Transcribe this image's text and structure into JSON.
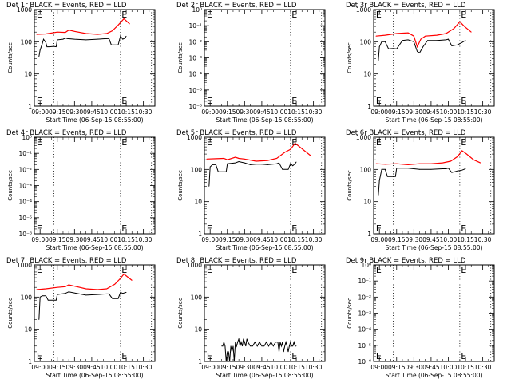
{
  "chart_data": [
    {
      "type": "line",
      "title": "Det 1r BLACK = Events, RED = LLD",
      "xlabel": "Start Time (06-Sep-15 08:55:00)",
      "ylabel": "Counts/sec",
      "yscale": "log",
      "ylim": [
        1,
        1000
      ],
      "ytick_labels": [
        "1",
        "10",
        "100",
        "1000"
      ],
      "xtick_labels": [
        "09:00",
        "09:15",
        "09:30",
        "09:45",
        "10:00",
        "10:15",
        "10:30"
      ],
      "vlines": [
        "09:12",
        "10:10",
        "10:37"
      ],
      "markers": [
        {
          "text": "E",
          "x": "08:57"
        },
        {
          "text": "E",
          "x": "10:11"
        }
      ],
      "series": [
        {
          "color": "#ff0000",
          "x": [
            "08:57",
            "09:05",
            "09:15",
            "09:22",
            "09:25",
            "09:30",
            "09:40",
            "09:50",
            "09:58",
            "10:03",
            "10:08",
            "10:13",
            "10:18"
          ],
          "values": [
            170,
            175,
            200,
            195,
            230,
            210,
            180,
            170,
            180,
            220,
            330,
            520,
            360
          ]
        },
        {
          "color": "#000000",
          "x": [
            "08:59",
            "09:00",
            "09:02",
            "09:03",
            "09:05",
            "09:06",
            "09:07",
            "09:08",
            "09:12",
            "09:14",
            "09:15",
            "09:20",
            "09:22",
            "09:24",
            "09:30",
            "09:40",
            "09:50",
            "09:58",
            "10:00",
            "10:02",
            "10:08",
            "10:10",
            "10:12",
            "10:14",
            "10:15"
          ],
          "values": [
            35,
            55,
            90,
            120,
            95,
            70,
            70,
            70,
            72,
            70,
            115,
            120,
            130,
            125,
            120,
            115,
            120,
            125,
            125,
            80,
            80,
            150,
            120,
            130,
            150
          ]
        }
      ]
    },
    {
      "type": "line",
      "title": "Det 2r BLACK = Events, RED = LLD",
      "xlabel": "Start Time (06-Sep-15 08:55:00)",
      "ylabel": "Counts/sec",
      "yscale": "log",
      "ylim": [
        1e-06,
        1
      ],
      "ytick_labels": [
        "10⁻⁶",
        "10⁻⁵",
        "10⁻⁴",
        "10⁻³",
        "10⁻²",
        "10⁻¹",
        "10⁰"
      ],
      "xtick_labels": [
        "09:00",
        "09:15",
        "09:30",
        "09:45",
        "10:00",
        "10:15",
        "10:30"
      ],
      "vlines": [
        "09:12",
        "10:10",
        "10:37"
      ],
      "markers": [
        {
          "text": "E",
          "x": "08:57"
        },
        {
          "text": "E",
          "x": "10:11"
        }
      ],
      "series": []
    },
    {
      "type": "line",
      "title": "Det 3r BLACK = Events, RED = LLD",
      "xlabel": "Start Time (06-Sep-15 08:55:00)",
      "ylabel": "Counts/sec",
      "yscale": "log",
      "ylim": [
        1,
        1000
      ],
      "ytick_labels": [
        "1",
        "10",
        "100",
        "1000"
      ],
      "xtick_labels": [
        "09:00",
        "09:15",
        "09:30",
        "09:45",
        "10:00",
        "10:15",
        "10:30"
      ],
      "vlines": [
        "09:12",
        "10:10",
        "10:37"
      ],
      "markers": [
        {
          "text": "E",
          "x": "08:57"
        },
        {
          "text": "E",
          "x": "10:11"
        }
      ],
      "series": [
        {
          "color": "#ff0000",
          "x": [
            "08:57",
            "09:05",
            "09:15",
            "09:25",
            "09:30",
            "09:33",
            "09:36",
            "09:40",
            "09:50",
            "09:58",
            "10:05",
            "10:10",
            "10:14",
            "10:20"
          ],
          "values": [
            150,
            160,
            180,
            190,
            150,
            70,
            120,
            150,
            160,
            180,
            260,
            420,
            300,
            200
          ]
        },
        {
          "color": "#000000",
          "x": [
            "08:59",
            "09:00",
            "09:02",
            "09:05",
            "09:08",
            "09:12",
            "09:15",
            "09:20",
            "09:25",
            "09:30",
            "09:33",
            "09:35",
            "09:38",
            "09:42",
            "09:50",
            "09:58",
            "10:00",
            "10:03",
            "10:08",
            "10:12",
            "10:15"
          ],
          "values": [
            25,
            70,
            100,
            100,
            60,
            62,
            60,
            110,
            115,
            100,
            50,
            45,
            70,
            110,
            110,
            115,
            120,
            75,
            80,
            95,
            110
          ]
        }
      ]
    },
    {
      "type": "line",
      "title": "Det 4r BLACK = Events, RED = LLD",
      "xlabel": "Start Time (06-Sep-15 08:55:00)",
      "ylabel": "Counts/sec",
      "yscale": "log",
      "ylim": [
        1e-06,
        1
      ],
      "ytick_labels": [
        "10⁻⁶",
        "10⁻⁵",
        "10⁻⁴",
        "10⁻³",
        "10⁻²",
        "10⁻¹",
        "10⁰"
      ],
      "xtick_labels": [
        "09:00",
        "09:15",
        "09:30",
        "09:45",
        "10:00",
        "10:15",
        "10:30"
      ],
      "vlines": [
        "09:12",
        "10:10",
        "10:37"
      ],
      "markers": [
        {
          "text": "E",
          "x": "08:57"
        },
        {
          "text": "E",
          "x": "10:11"
        }
      ],
      "series": []
    },
    {
      "type": "line",
      "title": "Det 5r BLACK = Events, RED = LLD",
      "xlabel": "Start Time (06-Sep-15 08:55:00)",
      "ylabel": "Counts/sec",
      "yscale": "log",
      "ylim": [
        1,
        1000
      ],
      "ytick_labels": [
        "1",
        "10",
        "100",
        "1000"
      ],
      "xtick_labels": [
        "09:00",
        "09:15",
        "09:30",
        "09:45",
        "10:00",
        "10:15",
        "10:30"
      ],
      "vlines": [
        "09:12",
        "10:10",
        "10:37"
      ],
      "markers": [
        {
          "text": "E",
          "x": "08:57"
        },
        {
          "text": "E",
          "x": "10:11"
        }
      ],
      "series": [
        {
          "color": "#ff0000",
          "x": [
            "08:57",
            "09:05",
            "09:12",
            "09:15",
            "09:22",
            "09:25",
            "09:30",
            "09:40",
            "09:50",
            "09:58",
            "10:05",
            "10:10",
            "10:14",
            "10:20",
            "10:28"
          ],
          "values": [
            210,
            215,
            220,
            200,
            240,
            220,
            210,
            180,
            190,
            220,
            340,
            420,
            650,
            440,
            260
          ]
        },
        {
          "color": "#000000",
          "x": [
            "08:59",
            "09:00",
            "09:02",
            "09:05",
            "09:07",
            "09:12",
            "09:14",
            "09:15",
            "09:22",
            "09:25",
            "09:30",
            "09:35",
            "09:40",
            "09:45",
            "09:50",
            "09:58",
            "10:00",
            "10:03",
            "10:08",
            "10:10",
            "10:12",
            "10:14",
            "10:15"
          ],
          "values": [
            30,
            120,
            140,
            140,
            85,
            85,
            85,
            150,
            160,
            175,
            160,
            140,
            145,
            145,
            140,
            150,
            160,
            100,
            100,
            150,
            130,
            150,
            170
          ]
        }
      ]
    },
    {
      "type": "line",
      "title": "Det 6r BLACK = Events, RED = LLD",
      "xlabel": "Start Time (06-Sep-15 08:55:00)",
      "ylabel": "Counts/sec",
      "yscale": "log",
      "ylim": [
        1,
        1000
      ],
      "ytick_labels": [
        "1",
        "10",
        "100",
        "1000"
      ],
      "xtick_labels": [
        "09:00",
        "09:15",
        "09:30",
        "09:45",
        "10:00",
        "10:15",
        "10:30"
      ],
      "vlines": [
        "09:12",
        "10:10",
        "10:37"
      ],
      "markers": [
        {
          "text": "E",
          "x": "08:57"
        },
        {
          "text": "E",
          "x": "10:11"
        }
      ],
      "series": [
        {
          "color": "#ff0000",
          "x": [
            "08:57",
            "09:05",
            "09:15",
            "09:25",
            "09:35",
            "09:45",
            "09:55",
            "10:02",
            "10:08",
            "10:12",
            "10:16",
            "10:22",
            "10:28"
          ],
          "values": [
            150,
            145,
            150,
            140,
            150,
            150,
            160,
            180,
            250,
            380,
            300,
            200,
            160
          ]
        },
        {
          "color": "#000000",
          "x": [
            "08:59",
            "09:00",
            "09:02",
            "09:05",
            "09:07",
            "09:12",
            "09:14",
            "09:15",
            "09:25",
            "09:35",
            "09:45",
            "09:55",
            "09:58",
            "10:00",
            "10:03",
            "10:08",
            "10:12",
            "10:15"
          ],
          "values": [
            15,
            45,
            100,
            100,
            60,
            60,
            60,
            110,
            110,
            100,
            100,
            105,
            105,
            110,
            80,
            90,
            95,
            105
          ]
        }
      ]
    },
    {
      "type": "line",
      "title": "Det 7r BLACK = Events, RED = LLD",
      "xlabel": "Start Time (06-Sep-15 08:55:00)",
      "ylabel": "Counts/sec",
      "yscale": "log",
      "ylim": [
        1,
        1000
      ],
      "ytick_labels": [
        "1",
        "10",
        "100",
        "1000"
      ],
      "xtick_labels": [
        "09:00",
        "09:15",
        "09:30",
        "09:45",
        "10:00",
        "10:15",
        "10:30"
      ],
      "vlines": [
        "09:12",
        "10:10",
        "10:37"
      ],
      "markers": [
        {
          "text": "E",
          "x": "08:57"
        },
        {
          "text": "E",
          "x": "10:11"
        }
      ],
      "series": [
        {
          "color": "#ff0000",
          "x": [
            "08:57",
            "09:05",
            "09:15",
            "09:22",
            "09:25",
            "09:32",
            "09:40",
            "09:50",
            "09:58",
            "10:05",
            "10:10",
            "10:13",
            "10:20"
          ],
          "values": [
            170,
            180,
            200,
            210,
            240,
            210,
            180,
            170,
            180,
            250,
            380,
            520,
            330
          ]
        },
        {
          "color": "#000000",
          "x": [
            "08:59",
            "09:00",
            "09:02",
            "09:05",
            "09:07",
            "09:12",
            "09:14",
            "09:15",
            "09:22",
            "09:25",
            "09:32",
            "09:40",
            "09:50",
            "09:58",
            "10:00",
            "10:03",
            "10:08",
            "10:10",
            "10:12",
            "10:15"
          ],
          "values": [
            20,
            100,
            110,
            110,
            80,
            80,
            80,
            120,
            130,
            145,
            130,
            115,
            120,
            125,
            125,
            90,
            90,
            140,
            130,
            140
          ]
        }
      ]
    },
    {
      "type": "line",
      "title": "Det 8r BLACK = Events, RED = LLD",
      "xlabel": "Start Time (06-Sep-15 08:55:00)",
      "ylabel": "Counts/sec",
      "yscale": "log",
      "ylim": [
        1,
        1000
      ],
      "ytick_labels": [
        "1",
        "10",
        "100",
        "1000"
      ],
      "xtick_labels": [
        "09:00",
        "09:15",
        "09:30",
        "09:45",
        "10:00",
        "10:15",
        "10:30"
      ],
      "vlines": [
        "09:12",
        "10:10",
        "10:37"
      ],
      "markers": [
        {
          "text": "E",
          "x": "08:57"
        },
        {
          "text": "E",
          "x": "10:11"
        }
      ],
      "series": [
        {
          "color": "#000000",
          "x": [
            "09:10",
            "09:11",
            "09:12",
            "09:13",
            "09:14",
            "09:15",
            "09:16",
            "09:17",
            "09:18",
            "09:19",
            "09:20",
            "09:21",
            "09:22",
            "09:23",
            "09:24",
            "09:25",
            "09:26",
            "09:27",
            "09:28",
            "09:29",
            "09:30",
            "09:31",
            "09:32",
            "09:33",
            "09:35",
            "09:37",
            "09:39",
            "09:41",
            "09:43",
            "09:45",
            "09:47",
            "09:49",
            "09:51",
            "09:53",
            "09:55",
            "09:57",
            "09:59",
            "10:00",
            "10:01",
            "10:02",
            "10:03",
            "10:04",
            "10:05",
            "10:06",
            "10:07",
            "10:08",
            "10:09",
            "10:10",
            "10:11",
            "10:12",
            "10:13",
            "10:14",
            "10:15"
          ],
          "values": [
            3,
            3,
            4,
            3,
            1,
            2,
            2,
            1,
            3,
            2,
            3,
            1,
            4,
            3,
            4,
            5,
            3,
            4,
            3,
            5,
            4,
            3,
            5,
            4,
            3,
            3,
            4,
            3,
            4,
            3,
            3,
            4,
            3,
            4,
            3,
            4,
            4,
            2,
            4,
            3,
            4,
            2,
            3,
            4,
            3,
            2,
            3,
            4,
            3,
            3,
            4,
            3,
            3
          ]
        }
      ]
    },
    {
      "type": "line",
      "title": "Det 9r BLACK = Events, RED = LLD",
      "xlabel": "Start Time (06-Sep-15 08:55:00)",
      "ylabel": "Counts/sec",
      "yscale": "log",
      "ylim": [
        1e-06,
        1
      ],
      "ytick_labels": [
        "10⁻⁶",
        "10⁻⁵",
        "10⁻⁴",
        "10⁻³",
        "10⁻²",
        "10⁻¹",
        "10⁰"
      ],
      "xtick_labels": [
        "09:00",
        "09:15",
        "09:30",
        "09:45",
        "10:00",
        "10:15",
        "10:30"
      ],
      "vlines": [
        "09:12",
        "10:10",
        "10:37"
      ],
      "markers": [
        {
          "text": "E",
          "x": "08:57"
        },
        {
          "text": "E",
          "x": "10:11"
        }
      ],
      "series": []
    }
  ]
}
